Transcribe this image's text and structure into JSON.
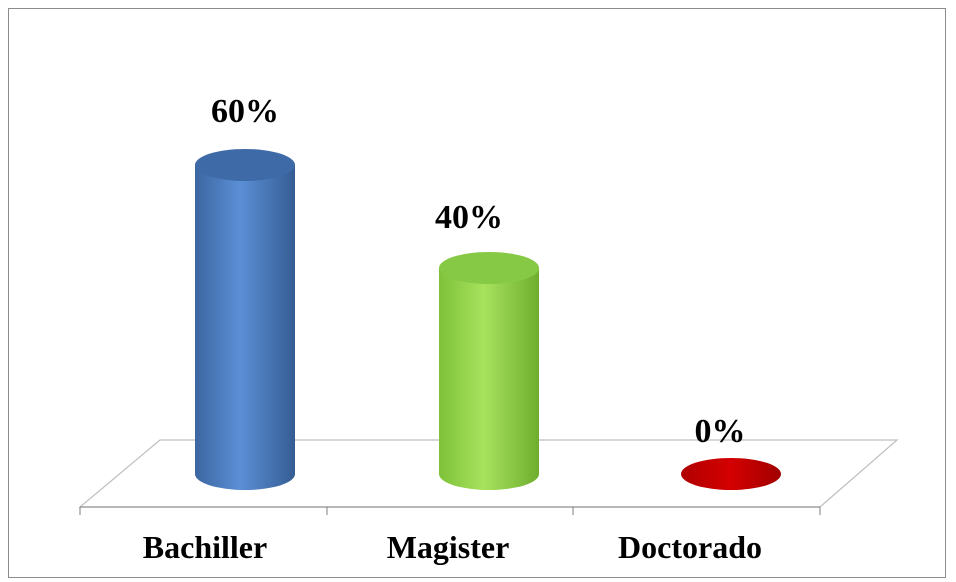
{
  "chart_data": {
    "type": "bar",
    "style": "3d-cylinder",
    "categories": [
      "Bachiller",
      "Magister",
      "Doctorado"
    ],
    "values": [
      60,
      40,
      0
    ],
    "value_labels": [
      "60%",
      "40%",
      "0%"
    ],
    "colors": [
      "#4f81bd",
      "#9bd94e",
      "#c00000"
    ],
    "ylim": [
      0,
      60
    ],
    "grid": false,
    "legend": "none"
  }
}
